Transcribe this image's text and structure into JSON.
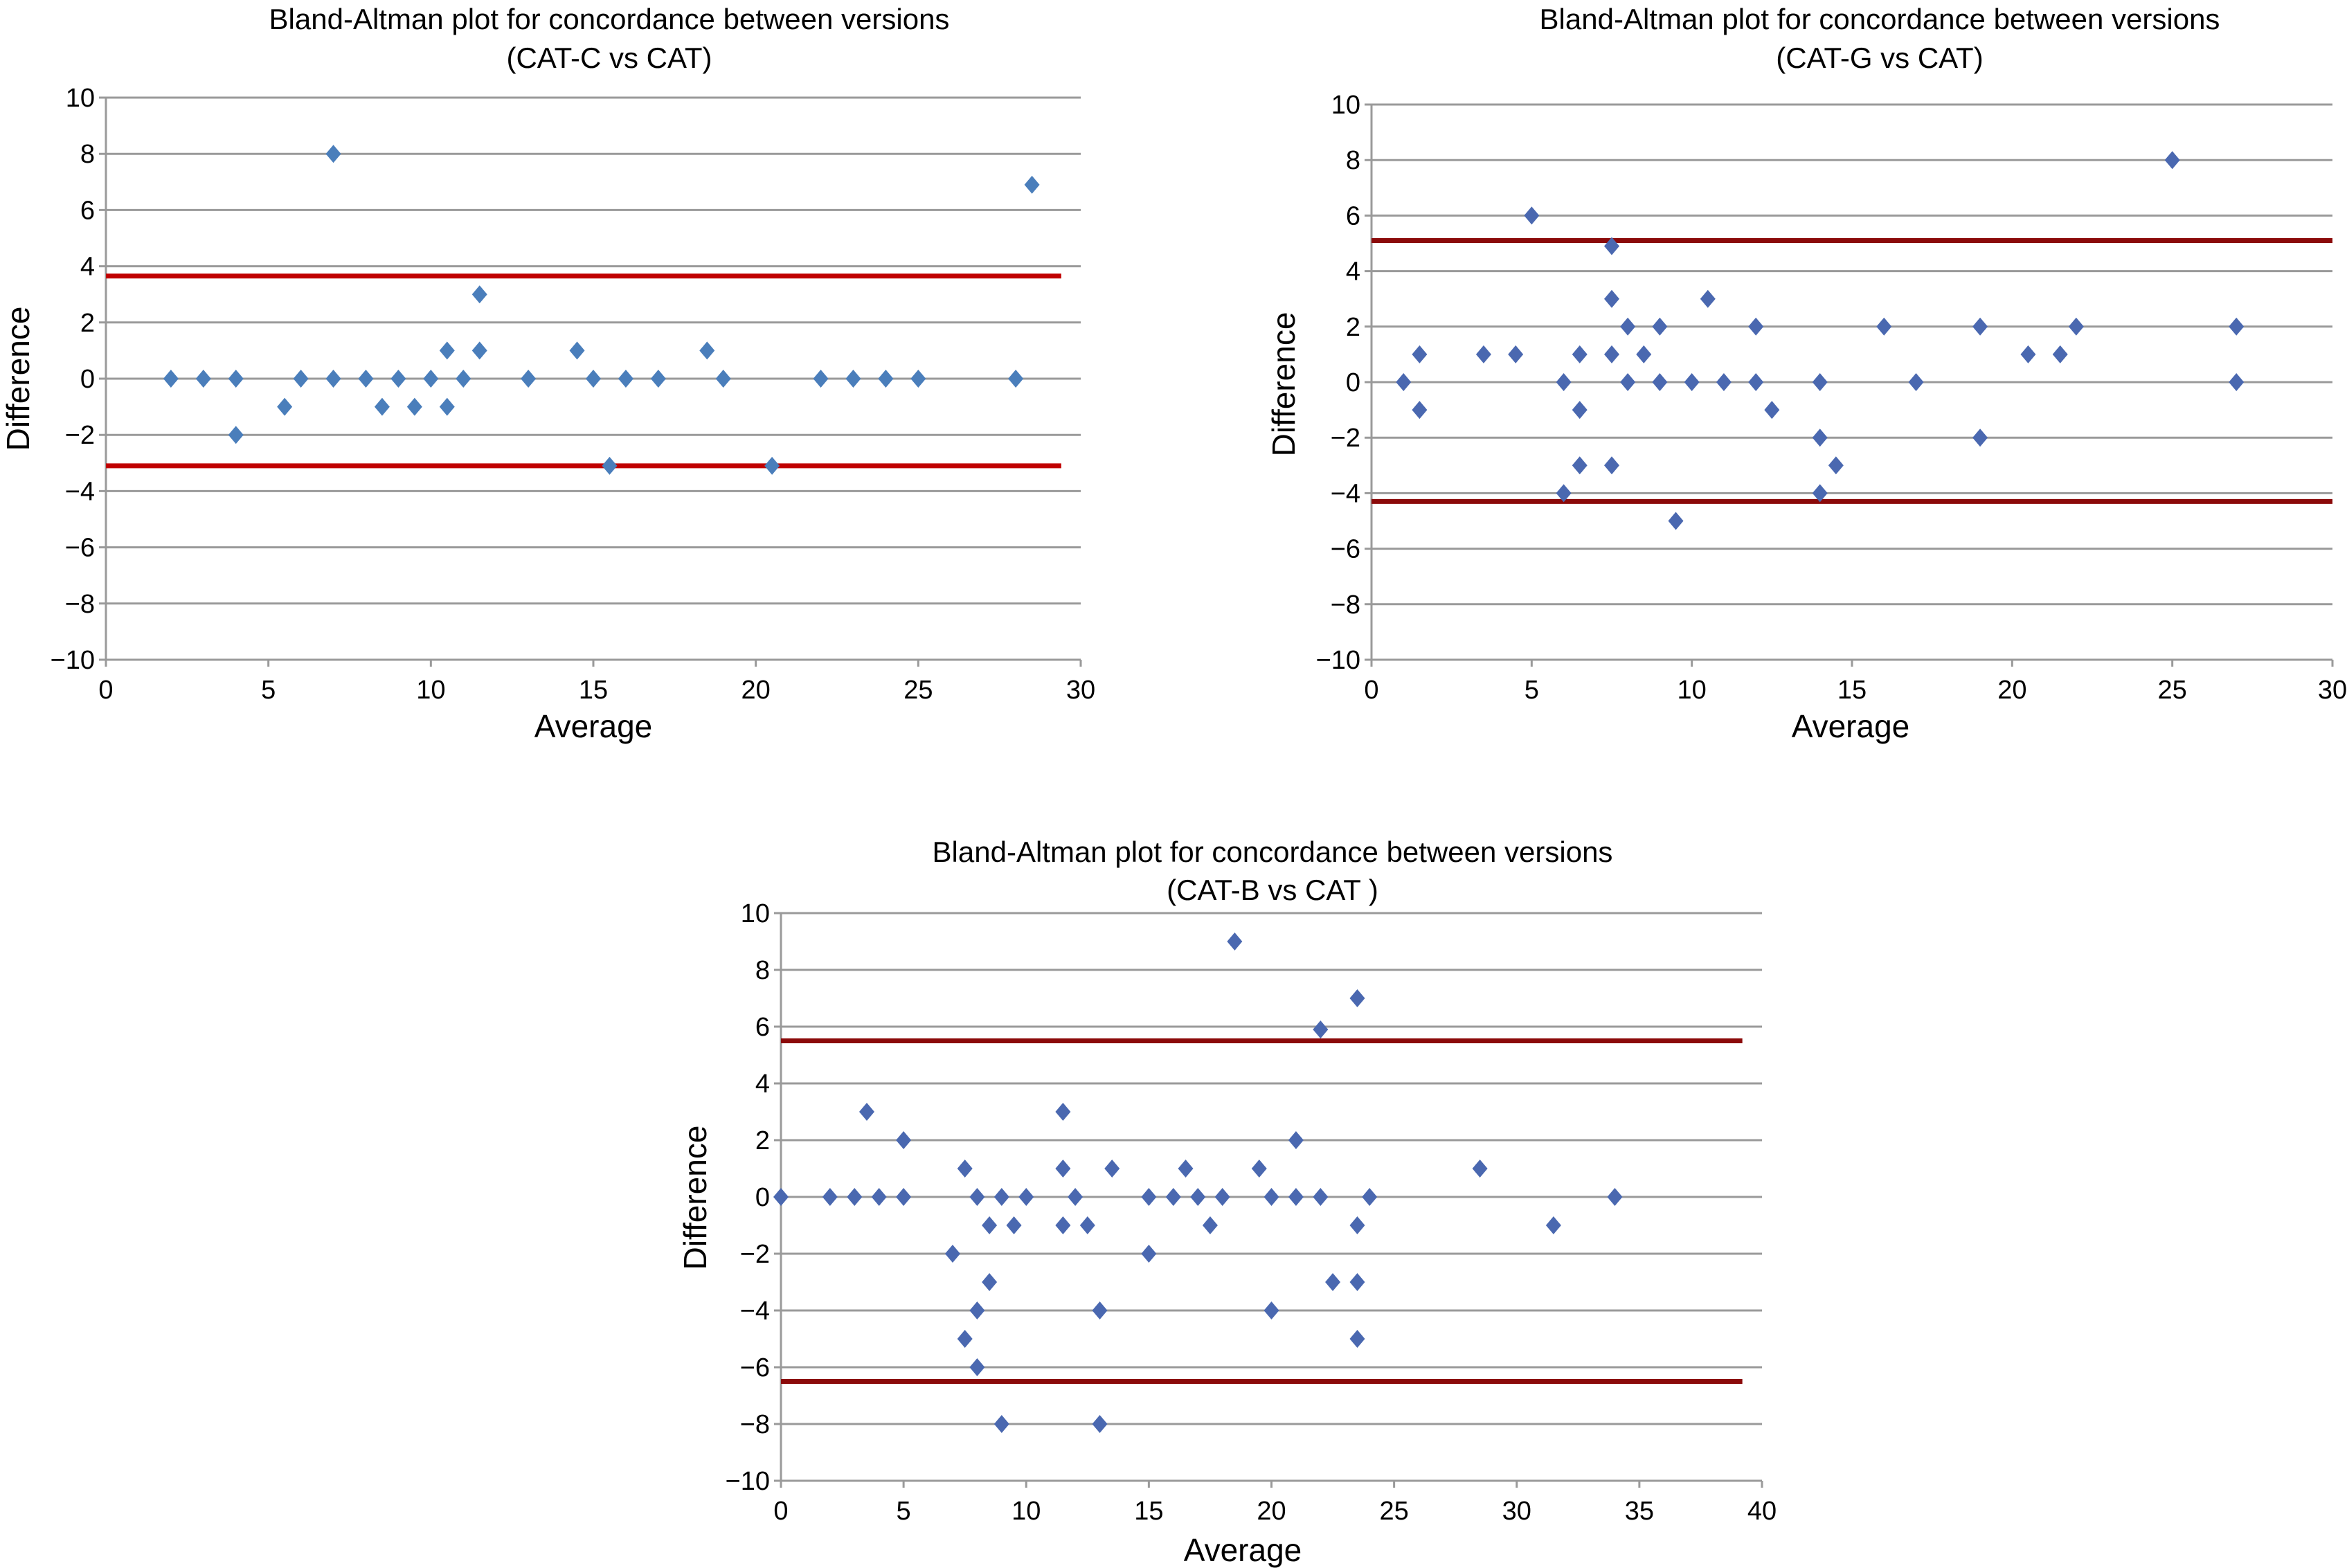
{
  "chart_data": [
    {
      "type": "scatter",
      "id": "cat-c",
      "title": [
        "Bland-Altman plot for concordance between versions",
        "(CAT-C vs CAT)"
      ],
      "xlabel": "Average",
      "ylabel": "Difference",
      "xlim": [
        0,
        30
      ],
      "ylim": [
        -10,
        10
      ],
      "xticks": [
        0,
        5,
        10,
        15,
        20,
        25,
        30
      ],
      "yticks": [
        10,
        8,
        6,
        4,
        2,
        0,
        -2,
        -4,
        -6,
        -8,
        -10
      ],
      "grid": true,
      "marker_color": "#4a7ebb",
      "limit_color": "#c00000",
      "limits_of_agreement": [
        3.65,
        -3.1
      ],
      "limit_x_range": [
        0,
        29.4
      ],
      "points": [
        [
          2,
          0
        ],
        [
          3,
          0
        ],
        [
          4,
          0
        ],
        [
          4,
          -2
        ],
        [
          5.5,
          -1
        ],
        [
          6,
          0
        ],
        [
          7,
          0
        ],
        [
          7,
          8
        ],
        [
          8,
          0
        ],
        [
          8.5,
          -1
        ],
        [
          9,
          0
        ],
        [
          9.5,
          -1
        ],
        [
          10,
          0
        ],
        [
          10.5,
          1
        ],
        [
          10.5,
          -1
        ],
        [
          11,
          0
        ],
        [
          11.5,
          1
        ],
        [
          11.5,
          3
        ],
        [
          13,
          0
        ],
        [
          14.5,
          1
        ],
        [
          15,
          0
        ],
        [
          15.5,
          -3.1
        ],
        [
          16,
          0
        ],
        [
          17,
          0
        ],
        [
          18.5,
          1
        ],
        [
          19,
          0
        ],
        [
          20.5,
          -3.1
        ],
        [
          22,
          0
        ],
        [
          23,
          0
        ],
        [
          24,
          0
        ],
        [
          25,
          0
        ],
        [
          28,
          0
        ],
        [
          28.5,
          6.9
        ]
      ]
    },
    {
      "type": "scatter",
      "id": "cat-g",
      "title": [
        "Bland-Altman plot for concordance between versions",
        "(CAT-G vs CAT)"
      ],
      "xlabel": "Average",
      "ylabel": "Difference",
      "xlim": [
        0,
        30
      ],
      "ylim": [
        -10,
        10
      ],
      "xticks": [
        0,
        5,
        10,
        15,
        20,
        25,
        30
      ],
      "yticks": [
        10,
        8,
        6,
        4,
        2,
        0,
        -2,
        -4,
        -6,
        -8,
        -10
      ],
      "grid": true,
      "marker_color": "#4a68b0",
      "limit_color": "#8b0a0a",
      "limits_of_agreement": [
        5.1,
        -4.3
      ],
      "limit_x_range": [
        0,
        30
      ],
      "points": [
        [
          1,
          0
        ],
        [
          1.5,
          1
        ],
        [
          1.5,
          -1
        ],
        [
          3.5,
          1
        ],
        [
          4.5,
          1
        ],
        [
          5,
          6
        ],
        [
          6,
          0
        ],
        [
          6,
          -4
        ],
        [
          6.5,
          1
        ],
        [
          6.5,
          -1
        ],
        [
          6.5,
          -3
        ],
        [
          7.5,
          4.9
        ],
        [
          7.5,
          3
        ],
        [
          7.5,
          1
        ],
        [
          7.5,
          -3
        ],
        [
          8,
          2
        ],
        [
          8,
          0
        ],
        [
          8.5,
          1
        ],
        [
          9,
          2
        ],
        [
          9,
          0
        ],
        [
          9.5,
          -5
        ],
        [
          10,
          0
        ],
        [
          10.5,
          3
        ],
        [
          11,
          0
        ],
        [
          12,
          2
        ],
        [
          12,
          0
        ],
        [
          12.5,
          -1
        ],
        [
          14,
          0
        ],
        [
          14,
          -2
        ],
        [
          14,
          -4
        ],
        [
          14.5,
          -3
        ],
        [
          16,
          2
        ],
        [
          17,
          0
        ],
        [
          19,
          2
        ],
        [
          19,
          -2
        ],
        [
          20.5,
          1
        ],
        [
          21.5,
          1
        ],
        [
          22,
          2
        ],
        [
          25,
          8
        ],
        [
          27,
          2
        ],
        [
          27,
          0
        ]
      ]
    },
    {
      "type": "scatter",
      "id": "cat-b",
      "title": [
        "Bland-Altman plot for concordance between versions",
        "(CAT-B vs CAT )"
      ],
      "xlabel": "Average",
      "ylabel": "Difference",
      "xlim": [
        0,
        40
      ],
      "ylim": [
        -10,
        10
      ],
      "xticks": [
        0,
        5,
        10,
        15,
        20,
        25,
        30,
        35,
        40
      ],
      "yticks": [
        10,
        8,
        6,
        4,
        2,
        0,
        -2,
        -4,
        -6,
        -8,
        -10
      ],
      "grid": true,
      "marker_color": "#4a68b0",
      "limit_color": "#8b0a0a",
      "limits_of_agreement": [
        5.5,
        -6.5
      ],
      "limit_x_range": [
        0,
        39.2
      ],
      "points": [
        [
          0,
          0
        ],
        [
          2,
          0
        ],
        [
          3,
          0
        ],
        [
          3.5,
          3
        ],
        [
          4,
          0
        ],
        [
          5,
          2
        ],
        [
          5,
          0
        ],
        [
          7,
          -2
        ],
        [
          7.5,
          1
        ],
        [
          7.5,
          -5
        ],
        [
          8,
          0
        ],
        [
          8,
          -4
        ],
        [
          8,
          -6
        ],
        [
          8.5,
          -1
        ],
        [
          8.5,
          -3
        ],
        [
          9,
          0
        ],
        [
          9,
          -8
        ],
        [
          9.5,
          -1
        ],
        [
          10,
          0
        ],
        [
          11.5,
          3
        ],
        [
          11.5,
          1
        ],
        [
          11.5,
          -1
        ],
        [
          12,
          0
        ],
        [
          12.5,
          -1
        ],
        [
          13,
          -4
        ],
        [
          13,
          -8
        ],
        [
          13.5,
          1
        ],
        [
          15,
          0
        ],
        [
          15,
          -2
        ],
        [
          16,
          0
        ],
        [
          16.5,
          1
        ],
        [
          17,
          0
        ],
        [
          17.5,
          -1
        ],
        [
          18,
          0
        ],
        [
          18.5,
          9
        ],
        [
          19.5,
          1
        ],
        [
          20,
          0
        ],
        [
          20,
          -4
        ],
        [
          21,
          2
        ],
        [
          21,
          0
        ],
        [
          22,
          5.9
        ],
        [
          22,
          0
        ],
        [
          22.5,
          -3
        ],
        [
          23.5,
          7
        ],
        [
          23.5,
          -1
        ],
        [
          23.5,
          -3
        ],
        [
          23.5,
          -5
        ],
        [
          24,
          0
        ],
        [
          28.5,
          1
        ],
        [
          31.5,
          -1
        ],
        [
          34,
          0
        ]
      ]
    }
  ]
}
